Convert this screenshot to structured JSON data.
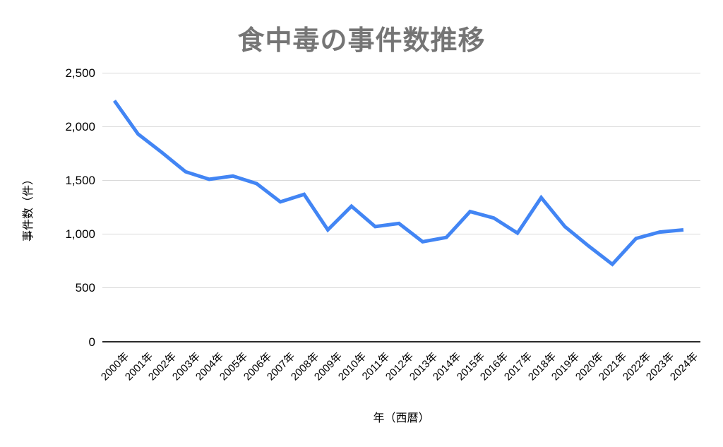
{
  "chart_data": {
    "type": "line",
    "title": "食中毒の事件数推移",
    "xlabel": "年（西暦）",
    "ylabel": "事件数（件）",
    "categories": [
      "2000年",
      "2001年",
      "2002年",
      "2003年",
      "2004年",
      "2005年",
      "2006年",
      "2007年",
      "2008年",
      "2009年",
      "2010年",
      "2011年",
      "2012年",
      "2013年",
      "2014年",
      "2015年",
      "2016年",
      "2017年",
      "2018年",
      "2019年",
      "2020年",
      "2021年",
      "2022年",
      "2023年",
      "2024年"
    ],
    "series": [
      {
        "name": "事件数",
        "values": [
          2240,
          1930,
          1760,
          1580,
          1510,
          1540,
          1470,
          1300,
          1370,
          1040,
          1260,
          1070,
          1100,
          930,
          970,
          1210,
          1150,
          1010,
          1340,
          1070,
          890,
          720,
          960,
          1020,
          1040
        ]
      }
    ],
    "ylim": [
      0,
      2500
    ],
    "yticks": [
      0,
      500,
      1000,
      1500,
      2000,
      2500
    ],
    "ytick_labels": [
      "0",
      "500",
      "1,000",
      "1,500",
      "2,000",
      "2,500"
    ],
    "xtick_rotation_deg": 45,
    "grid": "horizontal-only",
    "legend": "none",
    "colors": {
      "line": "#4285f4",
      "gridline": "#d9d9d9",
      "baseline": "#2b2b2b",
      "title": "#757575",
      "tick_text": "#000000",
      "background": "#ffffff"
    }
  }
}
